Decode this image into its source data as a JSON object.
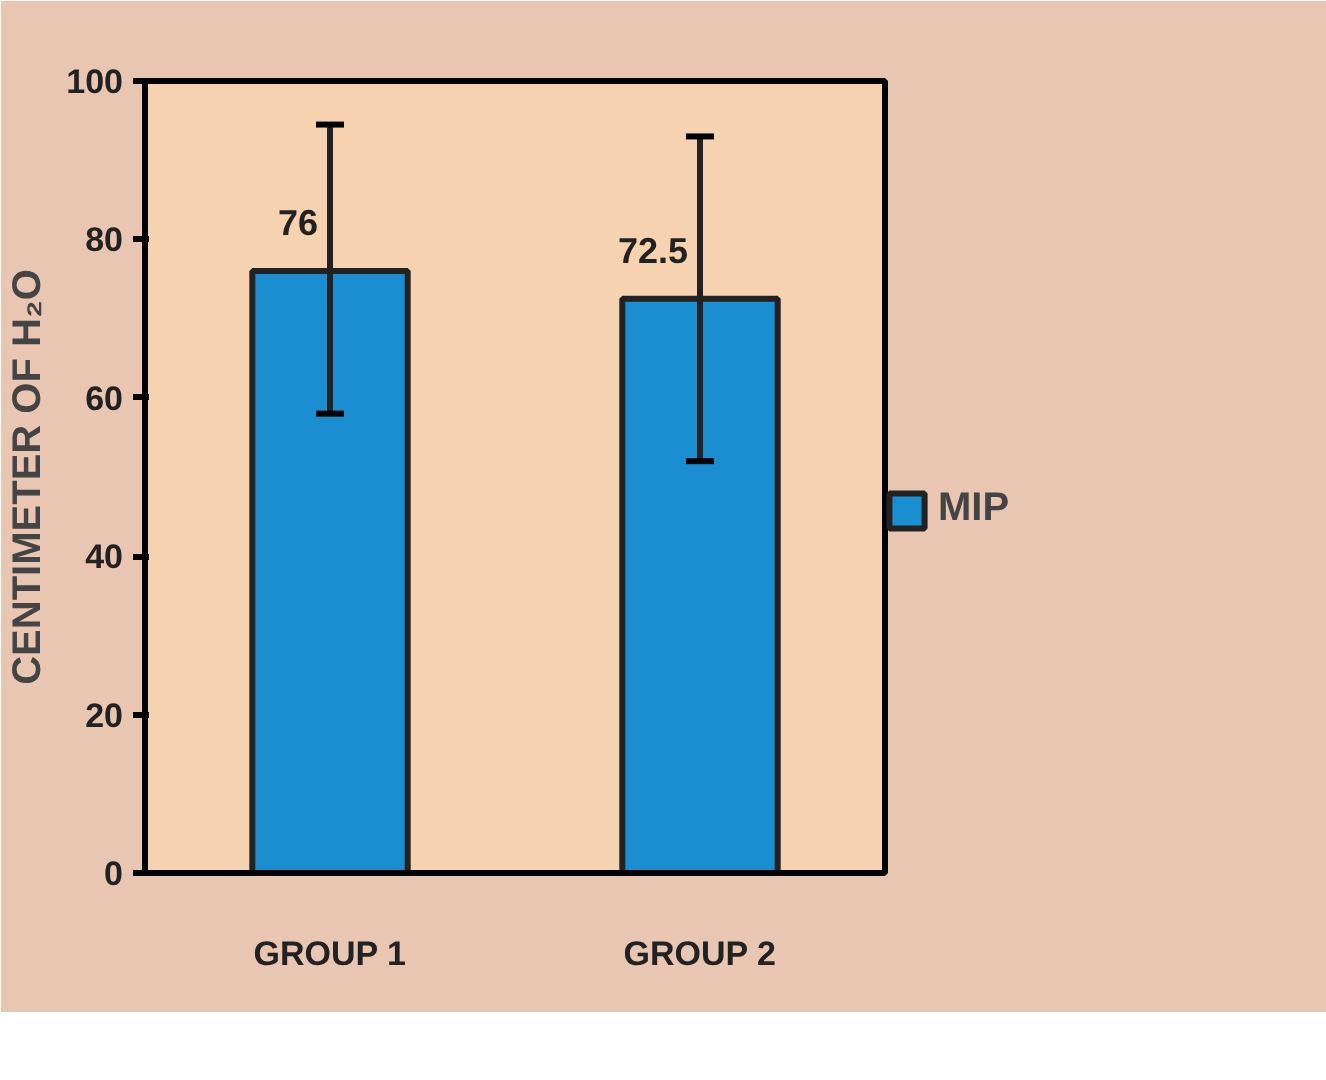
{
  "chart_data": {
    "type": "bar",
    "ylabel": "CENTIMETER OF H₂O",
    "categories": [
      "GROUP 1",
      "GROUP 2"
    ],
    "series": [
      {
        "name": "MIP",
        "color": "#1a8ed0",
        "values": [
          76,
          72.5
        ],
        "errors": [
          [
            58,
            94.5
          ],
          [
            52,
            93
          ]
        ]
      }
    ],
    "ylim": [
      0,
      100
    ],
    "yticks": [
      0,
      20,
      40,
      60,
      80,
      100
    ],
    "grid": false,
    "legend": "right",
    "data_labels": true
  }
}
